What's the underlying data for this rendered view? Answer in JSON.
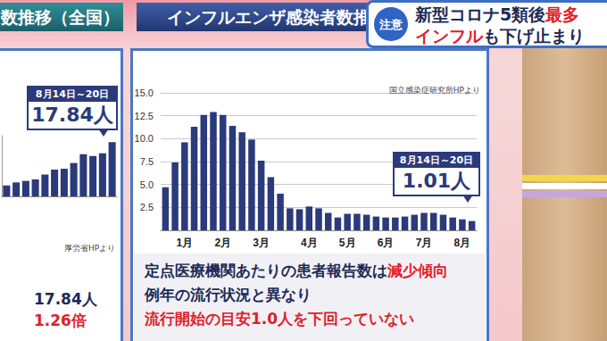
{
  "chart_data": [
    {
      "type": "bar",
      "title": "インフルエンザ感染者数推移（全国）",
      "source": "国立感染症研究所HPより",
      "categories": [
        null,
        null,
        "1月",
        null,
        null,
        null,
        "2月",
        null,
        null,
        null,
        "3月",
        null,
        null,
        null,
        null,
        "4月",
        null,
        null,
        null,
        "5月",
        null,
        null,
        null,
        "6月",
        null,
        null,
        null,
        "7月",
        null,
        null,
        null,
        "8月",
        null
      ],
      "values": [
        4.7,
        7.4,
        9.6,
        11.3,
        12.6,
        12.9,
        12.6,
        11.4,
        10.7,
        9.9,
        7.6,
        5.8,
        4.0,
        2.4,
        2.3,
        2.6,
        2.4,
        1.9,
        1.4,
        1.8,
        1.8,
        1.7,
        1.5,
        1.4,
        1.4,
        1.5,
        1.7,
        1.9,
        1.9,
        1.7,
        1.4,
        1.2,
        1.01
      ],
      "color": "#2b3a7a",
      "ylim": [
        0,
        15
      ],
      "yticks": [
        2.5,
        {
          "value": 5,
          "label": "5.0"
        },
        7.5,
        {
          "value": 10,
          "label": "10.0"
        },
        12.5,
        {
          "value": 15,
          "label": "15.0"
        }
      ],
      "grid": true,
      "annotation": {
        "period": "8月14日～20日",
        "text": "1.01人"
      }
    },
    {
      "type": "bar",
      "title": "数推移（全国）",
      "source": "厚労省HPより",
      "categories": [
        null,
        null,
        null,
        null,
        null,
        null,
        null,
        null,
        null,
        null,
        null,
        null
      ],
      "values": [
        3.6,
        4.6,
        5.1,
        5.6,
        7.2,
        8.8,
        9.1,
        11.0,
        13.9,
        13.3,
        14.2,
        17.84
      ],
      "color": "#2b3a7a",
      "ylim": [
        0,
        20
      ],
      "grid": false,
      "tick_labels": false,
      "annotation": {
        "period": "8月14日～20日",
        "text": "17.84人"
      }
    }
  ],
  "banner": {
    "badge": "注意",
    "lines": [
      [
        {
          "text": "新型コロナ5類後"
        },
        {
          "text": "最多",
          "highlight": true
        }
      ],
      [
        {
          "text": "インフル",
          "highlight": true
        },
        {
          "text": "も下げ止まり"
        }
      ]
    ]
  },
  "notes": [
    [
      {
        "text": "定点医療機関あたりの患者報告数は"
      },
      {
        "text": "減少傾向",
        "highlight": true
      }
    ],
    [
      {
        "text": "例年の流行状況と異なり"
      }
    ],
    [
      {
        "text": "流行開始の目安1.0人を下回っていない",
        "highlight": true
      }
    ]
  ],
  "summary": [
    [
      {
        "text": "17.84人"
      }
    ],
    [
      {
        "text": "1.26倍",
        "highlight": true
      }
    ]
  ]
}
